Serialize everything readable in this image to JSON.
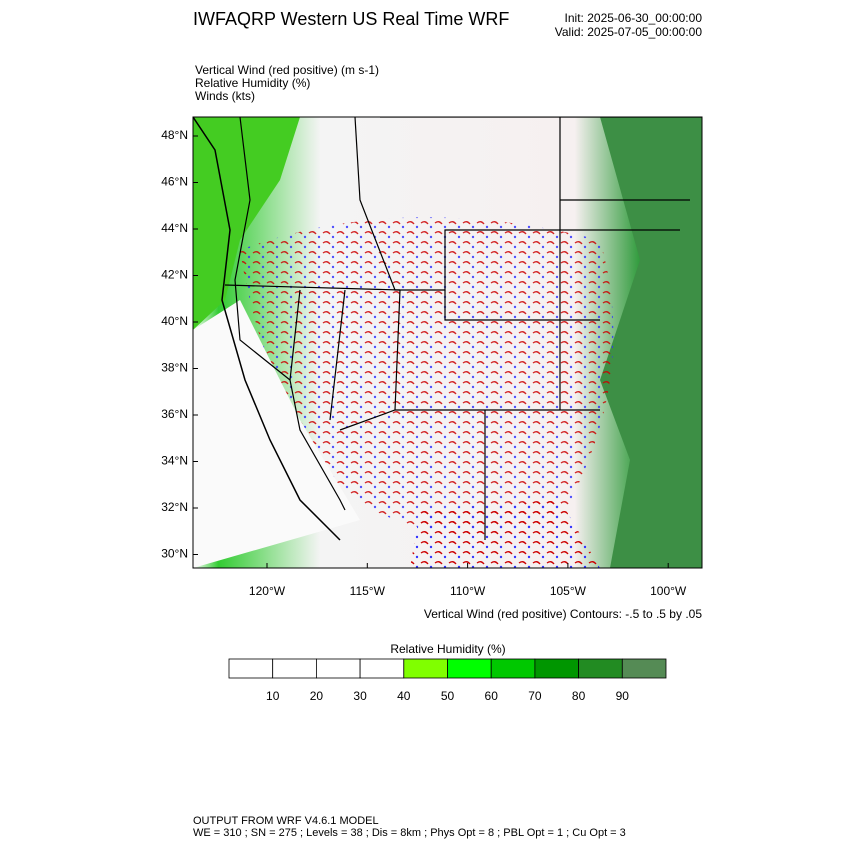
{
  "header": {
    "title": "IWFAQRP Western US Real Time WRF",
    "init": "Init: 2025-06-30_00:00:00",
    "valid": "Valid: 2025-07-05_00:00:00"
  },
  "fields": [
    "Vertical Wind (red positive)   (m s-1)",
    "Relative Humidity   (%)",
    "Winds   (kts)"
  ],
  "map": {
    "lat_labels": [
      "48°N",
      "46°N",
      "44°N",
      "42°N",
      "40°N",
      "38°N",
      "36°N",
      "34°N",
      "32°N",
      "30°N"
    ],
    "lon_labels": [
      "120°W",
      "115°W",
      "110°W",
      "105°W",
      "100°W"
    ],
    "contour_note": "Vertical Wind (red positive) Contours: -.5 to .5 by .05"
  },
  "colorbar": {
    "title": "Relative Humidity  (%)",
    "levels": [
      10,
      20,
      30,
      40,
      50,
      60,
      70,
      80,
      90
    ],
    "colors": [
      "#ffffff",
      "#ffffff",
      "#ffffff",
      "#ffffff",
      "#80ff00",
      "#00ff00",
      "#00c800",
      "#009600",
      "#228b22",
      "#558b55"
    ]
  },
  "footer": {
    "line1": "OUTPUT FROM WRF V4.6.1 MODEL",
    "line2": "WE = 310 ; SN = 275 ; Levels = 38 ; Dis = 8km ; Phys Opt = 8 ; PBL Opt = 1 ; Cu Opt = 3"
  }
}
